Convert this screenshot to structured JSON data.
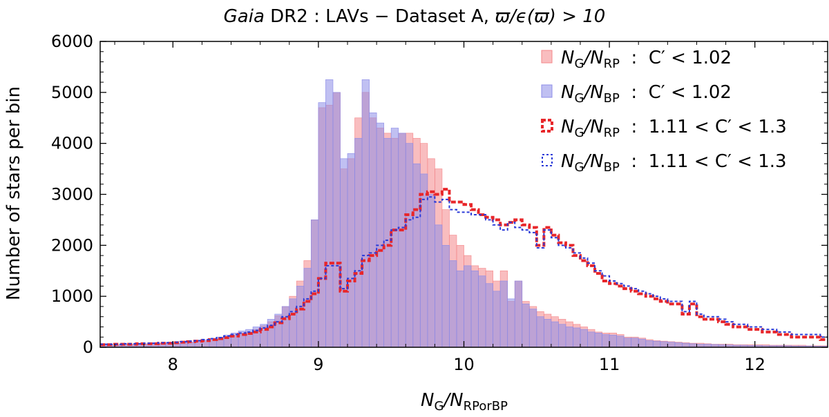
{
  "chart_data": {
    "type": "bar",
    "title": {
      "italic": "Gaia",
      "rest": " DR2 : LAVs  −  Dataset A, ",
      "expr": "ϖ/ϵ(ϖ) > 10"
    },
    "xlabel": {
      "main": "N",
      "sub1": "G",
      "slash": "/N",
      "sub2": "RPorBP"
    },
    "ylabel": "Number of stars per bin",
    "xlim": [
      7.5,
      12.5
    ],
    "ylim": [
      0,
      6000
    ],
    "xticks": [
      "8",
      "9",
      "10",
      "11",
      "12"
    ],
    "yticks": [
      "0",
      "1000",
      "2000",
      "3000",
      "4000",
      "5000",
      "6000"
    ],
    "bin_width": 0.05,
    "series": [
      {
        "name": "NG/NRP : C' < 1.02",
        "style": "filled",
        "color": "#f4878a",
        "start": 7.5,
        "values": [
          50,
          50,
          50,
          60,
          60,
          60,
          70,
          70,
          80,
          80,
          80,
          90,
          100,
          110,
          120,
          140,
          160,
          190,
          220,
          260,
          300,
          350,
          420,
          500,
          620,
          800,
          1000,
          1300,
          1700,
          2500,
          4700,
          4750,
          5000,
          3500,
          3700,
          4500,
          5000,
          4500,
          4300,
          4200,
          4100,
          4200,
          4200,
          4100,
          4000,
          3700,
          3500,
          2700,
          2200,
          2000,
          1800,
          1600,
          1550,
          1500,
          1300,
          1500,
          900,
          1300,
          900,
          800,
          700,
          650,
          600,
          550,
          500,
          450,
          400,
          350,
          300,
          280,
          280,
          250,
          200,
          200,
          180,
          150,
          130,
          120,
          110,
          100,
          90,
          80,
          80,
          70,
          60,
          60,
          60,
          50,
          50,
          50,
          50,
          50,
          40,
          40,
          40,
          40,
          40,
          30,
          30,
          30
        ]
      },
      {
        "name": "NG/NBP : C' < 1.02",
        "style": "filled",
        "color": "#8c8ce8",
        "start": 7.5,
        "values": [
          40,
          40,
          40,
          50,
          50,
          50,
          60,
          60,
          70,
          70,
          80,
          90,
          100,
          120,
          140,
          170,
          200,
          240,
          280,
          320,
          350,
          400,
          450,
          550,
          650,
          800,
          950,
          1200,
          1550,
          2500,
          4800,
          5250,
          5000,
          3700,
          3800,
          4100,
          5250,
          4600,
          4400,
          4100,
          4300,
          4200,
          4000,
          3600,
          3400,
          3000,
          2400,
          2000,
          1700,
          1500,
          1600,
          1500,
          1400,
          1250,
          1100,
          1300,
          950,
          1300,
          850,
          750,
          600,
          550,
          500,
          450,
          400,
          380,
          350,
          300,
          280,
          250,
          240,
          220,
          180,
          180,
          160,
          130,
          120,
          110,
          100,
          90,
          80,
          70,
          60,
          60,
          55,
          50,
          45,
          40,
          40,
          35,
          35,
          30,
          30,
          30,
          30,
          25,
          25,
          25,
          20,
          20
        ]
      },
      {
        "name": "NG/NRP : 1.11 < C' < 1.3",
        "style": "step-dashed",
        "color": "#e8262a",
        "start": 7.5,
        "values": [
          50,
          50,
          60,
          60,
          60,
          70,
          70,
          70,
          80,
          80,
          90,
          100,
          110,
          120,
          130,
          150,
          170,
          190,
          220,
          250,
          270,
          300,
          350,
          400,
          480,
          560,
          650,
          750,
          900,
          1050,
          1350,
          1650,
          1650,
          1100,
          1300,
          1450,
          1700,
          1800,
          1900,
          2000,
          2300,
          2300,
          2600,
          2700,
          3000,
          3050,
          3000,
          3100,
          2850,
          2850,
          2800,
          2700,
          2600,
          2550,
          2500,
          2400,
          2450,
          2500,
          2400,
          2350,
          2000,
          2350,
          2200,
          2050,
          2000,
          1800,
          1700,
          1600,
          1450,
          1300,
          1250,
          1200,
          1150,
          1100,
          1050,
          1000,
          950,
          900,
          850,
          850,
          650,
          850,
          600,
          550,
          550,
          500,
          450,
          400,
          400,
          350,
          350,
          300,
          300,
          250,
          250,
          200,
          200,
          200,
          200,
          150
        ]
      },
      {
        "name": "NG/NBP : 1.11 < C' < 1.3",
        "style": "step-dotted",
        "color": "#2a3ad8",
        "start": 7.5,
        "values": [
          60,
          60,
          60,
          70,
          70,
          70,
          80,
          80,
          90,
          90,
          100,
          110,
          120,
          130,
          150,
          170,
          190,
          220,
          250,
          280,
          300,
          330,
          380,
          430,
          500,
          600,
          700,
          800,
          950,
          1100,
          1350,
          1600,
          1600,
          1150,
          1350,
          1500,
          1800,
          1850,
          2000,
          2100,
          2300,
          2350,
          2500,
          2550,
          2900,
          2950,
          2850,
          2900,
          2700,
          2650,
          2650,
          2600,
          2600,
          2500,
          2400,
          2300,
          2450,
          2350,
          2300,
          2250,
          1950,
          2300,
          2150,
          2000,
          1950,
          1850,
          1750,
          1650,
          1500,
          1400,
          1300,
          1250,
          1200,
          1150,
          1100,
          1050,
          1000,
          950,
          900,
          900,
          700,
          900,
          650,
          600,
          600,
          550,
          500,
          450,
          450,
          400,
          400,
          350,
          350,
          300,
          300,
          250,
          250,
          250,
          250,
          200
        ]
      }
    ],
    "legend": {
      "position": "top-right",
      "entries": [
        {
          "n1": "N",
          "s1": "G",
          "n2": "/N",
          "s2": "RP",
          "cond": ":  C′ < 1.02",
          "marker": "filled",
          "color": "#f4878a",
          "edge": "#f4878a"
        },
        {
          "n1": "N",
          "s1": "G",
          "n2": "/N",
          "s2": "BP",
          "cond": ":  C′ < 1.02",
          "marker": "filled",
          "color": "#8c8ce8",
          "edge": "#8c8ce8"
        },
        {
          "n1": "N",
          "s1": "G",
          "n2": "/N",
          "s2": "RP",
          "cond": ":  1.11 < C′ < 1.3",
          "marker": "dashed",
          "color": "#e8262a",
          "edge": "#e8262a"
        },
        {
          "n1": "N",
          "s1": "G",
          "n2": "/N",
          "s2": "BP",
          "cond": ":  1.11 < C′ < 1.3",
          "marker": "dotted",
          "color": "#2a3ad8",
          "edge": "#2a3ad8"
        }
      ]
    }
  }
}
